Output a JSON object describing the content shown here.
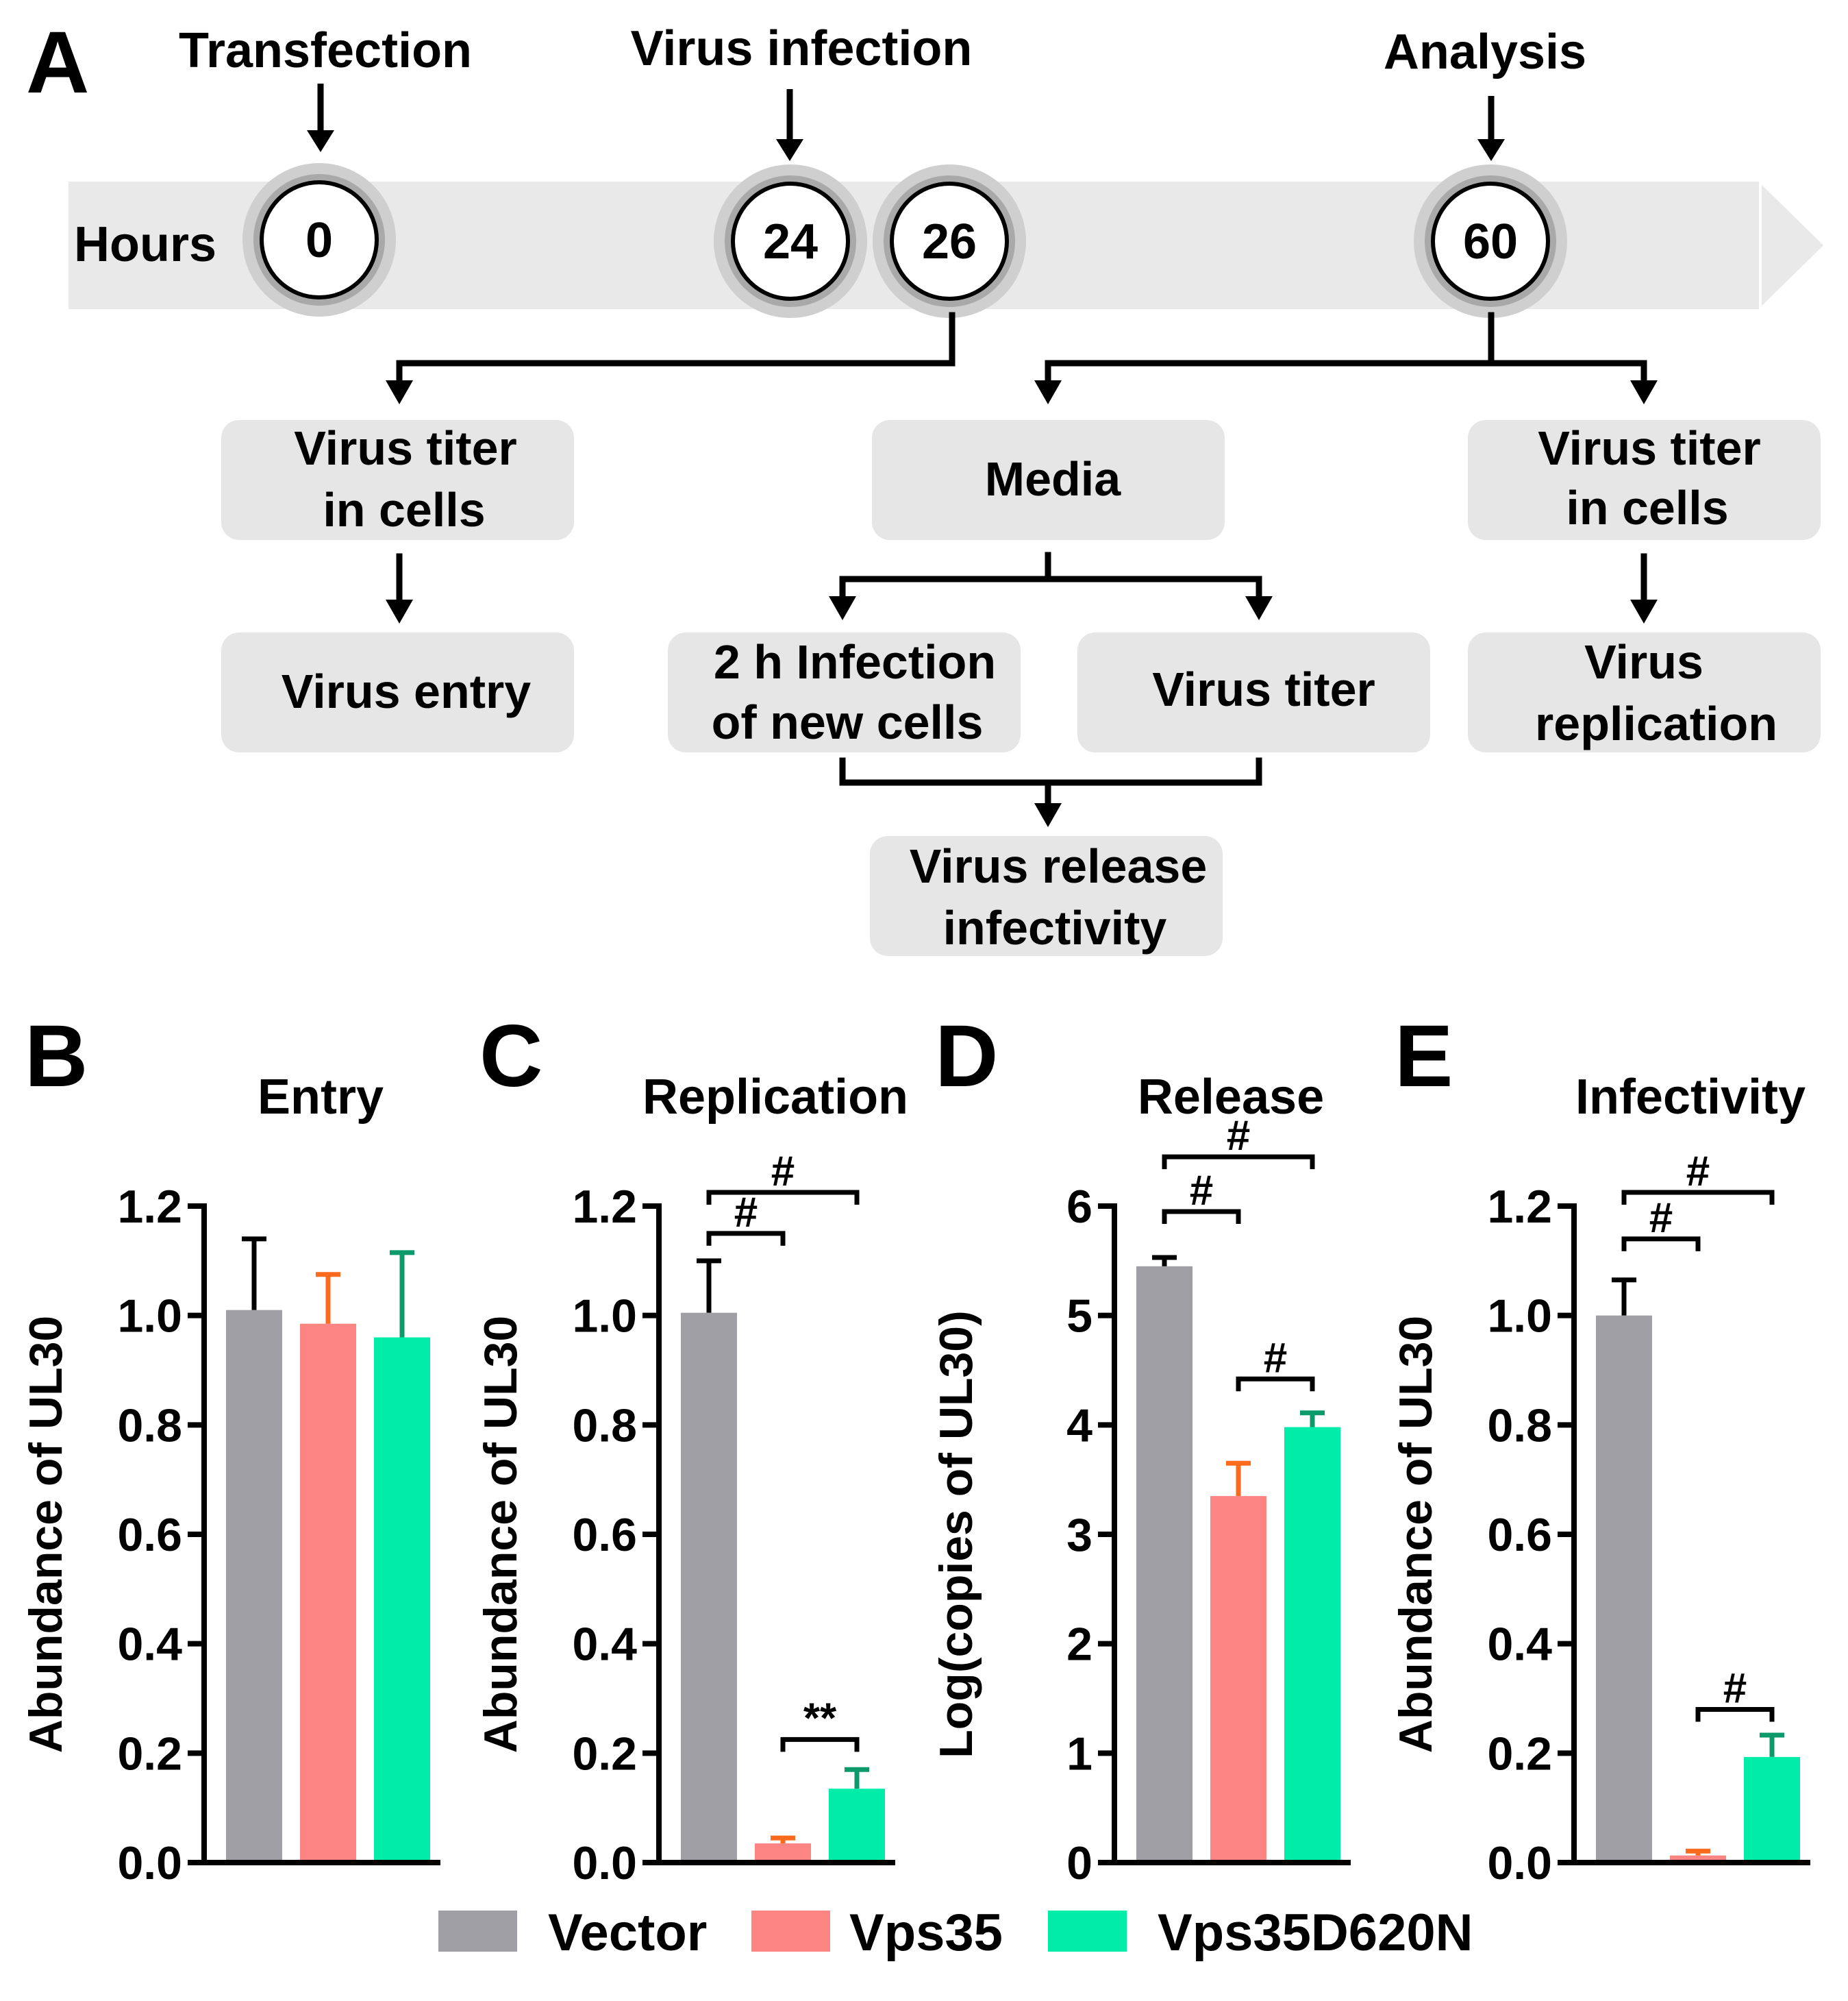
{
  "panel_a": {
    "label": "A",
    "timeline_label": "Hours",
    "events": [
      {
        "label": "Transfection",
        "hour": "0"
      },
      {
        "label": "Virus infection",
        "hour": "24"
      },
      {
        "label": "",
        "hour": "26"
      },
      {
        "label": "Analysis",
        "hour": "60"
      }
    ],
    "boxes": {
      "titer_26": [
        "Virus titer",
        "in cells"
      ],
      "entry": [
        "Virus entry"
      ],
      "media": [
        "Media"
      ],
      "titer_60": [
        "Virus titer",
        "in cells"
      ],
      "replication": [
        "Virus",
        "replication"
      ],
      "infection_new": [
        "2 h Infection",
        "of new cells"
      ],
      "virus_titer": [
        "Virus titer"
      ],
      "release": [
        "Virus release",
        "infectivity"
      ]
    }
  },
  "legend": [
    {
      "name": "Vector",
      "color": "#a09fa5"
    },
    {
      "name": "Vps35",
      "color": "#fc8584"
    },
    {
      "name": "Vps35D620N",
      "color": "#00eda9"
    }
  ],
  "chart_data": [
    {
      "panel": "B",
      "type": "bar",
      "title": "Entry",
      "ylabel": "Abundance of UL30",
      "ylim": [
        0,
        1.2
      ],
      "yticks": [
        "0.0",
        "0.2",
        "0.4",
        "0.6",
        "0.8",
        "1.0",
        "1.2"
      ],
      "categories": [
        "Vector",
        "Vps35",
        "Vps35D620N"
      ],
      "values": [
        1.01,
        0.985,
        0.96
      ],
      "errors": [
        0.13,
        0.09,
        0.155
      ],
      "error_colors": [
        "#000000",
        "#fb6a1d",
        "#0d9a6a"
      ],
      "significance": []
    },
    {
      "panel": "C",
      "type": "bar",
      "title": "Replication",
      "ylabel": "Abundance of UL30",
      "ylim": [
        0,
        1.2
      ],
      "yticks": [
        "0.0",
        "0.2",
        "0.4",
        "0.6",
        "0.8",
        "1.0",
        "1.2"
      ],
      "categories": [
        "Vector",
        "Vps35",
        "Vps35D620N"
      ],
      "values": [
        1.005,
        0.035,
        0.135
      ],
      "errors": [
        0.095,
        0.01,
        0.035
      ],
      "error_colors": [
        "#000000",
        "#fb6a1d",
        "#0d9a6a"
      ],
      "significance": [
        {
          "from": 0,
          "to": 2,
          "label": "#",
          "y": 1.225
        },
        {
          "from": 0,
          "to": 1,
          "label": "#",
          "y": 1.15
        },
        {
          "from": 1,
          "to": 2,
          "label": "**",
          "y": 0.225
        }
      ]
    },
    {
      "panel": "D",
      "type": "bar",
      "title": "Release",
      "ylabel": "Log(copies of UL30)",
      "ylim": [
        0,
        6
      ],
      "yticks": [
        "0",
        "1",
        "2",
        "3",
        "4",
        "5",
        "6"
      ],
      "categories": [
        "Vector",
        "Vps35",
        "Vps35D620N"
      ],
      "values": [
        5.45,
        3.35,
        3.98
      ],
      "errors": [
        0.08,
        0.3,
        0.13
      ],
      "error_colors": [
        "#000000",
        "#fb6a1d",
        "#0d9a6a"
      ],
      "significance": [
        {
          "from": 0,
          "to": 2,
          "label": "#",
          "y": 6.45
        },
        {
          "from": 0,
          "to": 1,
          "label": "#",
          "y": 5.95
        },
        {
          "from": 1,
          "to": 2,
          "label": "#",
          "y": 4.42
        }
      ]
    },
    {
      "panel": "E",
      "type": "bar",
      "title": "Infectivity",
      "ylabel": "Abundance of UL30",
      "ylim": [
        0,
        1.2
      ],
      "yticks": [
        "0.0",
        "0.2",
        "0.4",
        "0.6",
        "0.8",
        "1.0",
        "1.2"
      ],
      "categories": [
        "Vector",
        "Vps35",
        "Vps35D620N"
      ],
      "values": [
        1.0,
        0.013,
        0.193
      ],
      "errors": [
        0.065,
        0.008,
        0.04
      ],
      "error_colors": [
        "#000000",
        "#fb6a1d",
        "#0d9a6a"
      ],
      "significance": [
        {
          "from": 0,
          "to": 2,
          "label": "#",
          "y": 1.225
        },
        {
          "from": 0,
          "to": 1,
          "label": "#",
          "y": 1.14
        },
        {
          "from": 1,
          "to": 2,
          "label": "#",
          "y": 0.28
        }
      ]
    }
  ]
}
